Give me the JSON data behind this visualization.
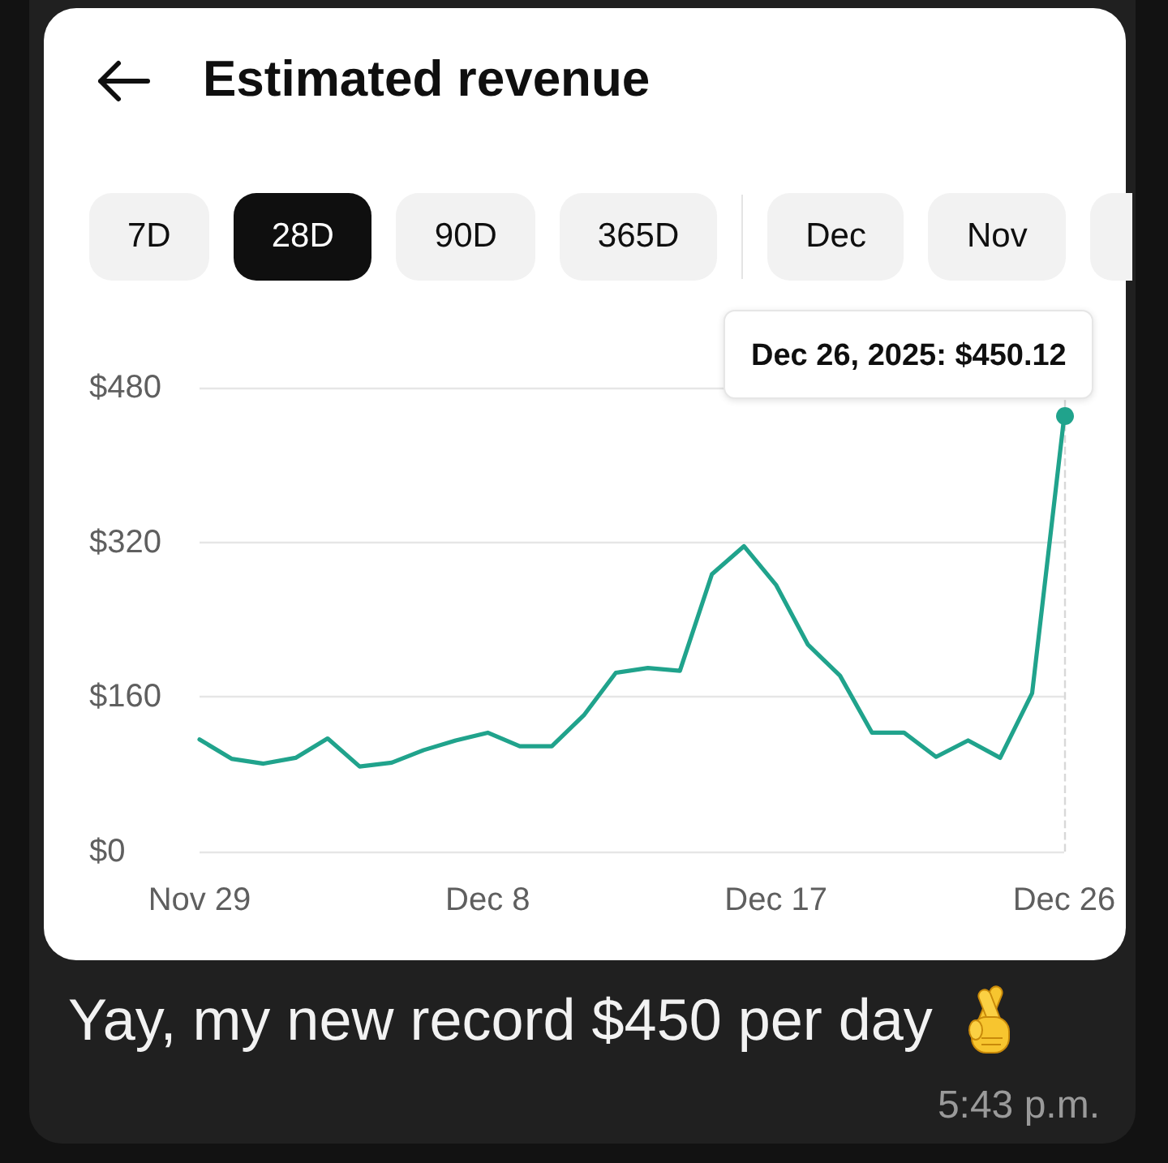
{
  "chart_data": {
    "type": "line",
    "title": "Estimated revenue",
    "categories": [
      "Nov 29",
      null,
      null,
      null,
      null,
      null,
      null,
      null,
      null,
      "Dec 8",
      null,
      null,
      null,
      null,
      null,
      null,
      null,
      null,
      "Dec 17",
      null,
      null,
      null,
      null,
      null,
      null,
      null,
      null,
      "Dec 26"
    ],
    "values": [
      116,
      96,
      91,
      97,
      117,
      88,
      92,
      105,
      115,
      123,
      109,
      109,
      141,
      185,
      190,
      187,
      287,
      316,
      276,
      214,
      182,
      123,
      123,
      98,
      115,
      97,
      164,
      450.12
    ],
    "color": "#20a38c",
    "ylim": [
      0,
      480
    ],
    "yticks": [
      {
        "value": 0,
        "label": "$0"
      },
      {
        "value": 160,
        "label": "$160"
      },
      {
        "value": 320,
        "label": "$320"
      },
      {
        "value": 480,
        "label": "$480"
      }
    ],
    "grid": "y",
    "marker": "none",
    "line_style": "solid",
    "ref_lines": [
      {
        "axis": "x",
        "value": "Dec 26",
        "line_style": "dashed",
        "color": "#d8d8d8"
      }
    ],
    "annotations": [
      "7D",
      "28D",
      "90D",
      "365D",
      "Dec",
      "Nov",
      {
        "text": "Dec 26, 2025: $450.12",
        "x": "Dec 26",
        "y": 450.12
      },
      "Yay, my new record $450 per day",
      "5:43 p.m."
    ]
  }
}
